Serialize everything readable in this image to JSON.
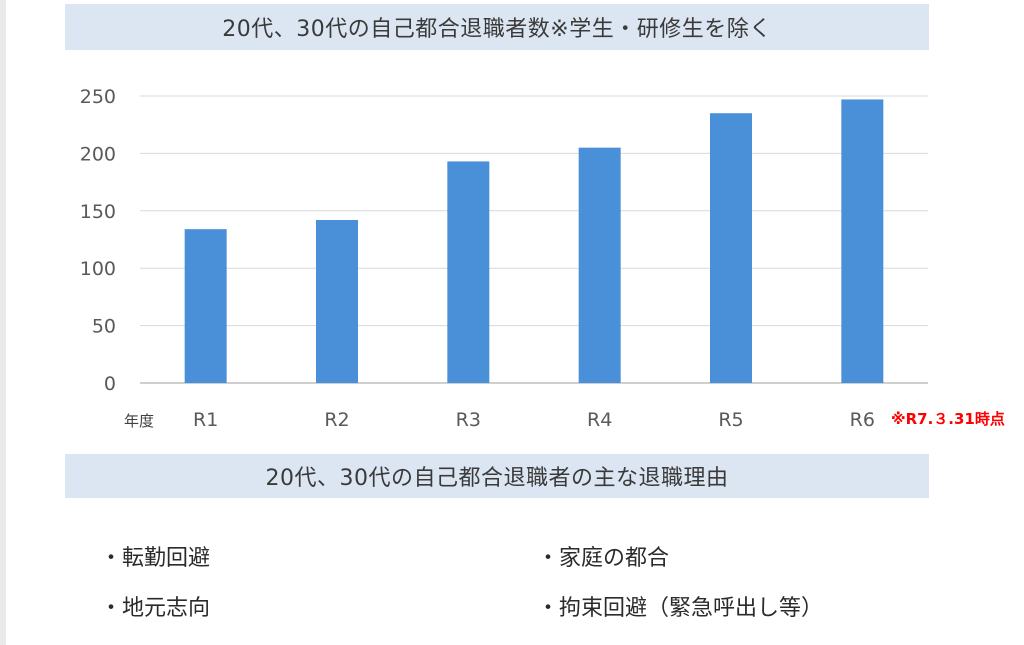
{
  "title": "20代、30代の自己都合退職者数※学生・研修生を除く",
  "chart_data": {
    "type": "bar",
    "categories": [
      "R1",
      "R2",
      "R3",
      "R4",
      "R5",
      "R6"
    ],
    "values": [
      134,
      142,
      193,
      205,
      235,
      247
    ],
    "title": "20代、30代の自己都合退職者数※学生・研修生を除く",
    "xlabel": "年度",
    "ylabel": "",
    "ylim": [
      0,
      250
    ],
    "yticks": [
      0,
      50,
      100,
      150,
      200,
      250
    ],
    "grid": true,
    "bar_color": "#4a90d9",
    "annotation": "※R7.３.31時点",
    "annotation_color": "#ff0000"
  },
  "reasons": {
    "title": "20代、30代の自己都合退職者の主な退職理由",
    "items": [
      "・転勤回避",
      "・家庭の都合",
      "・地元志向",
      "・拘束回避（緊急呼出し等）"
    ]
  },
  "colors": {
    "banner": "#dce6f2",
    "bar": "#4a90d9",
    "note": "#ff0000"
  }
}
